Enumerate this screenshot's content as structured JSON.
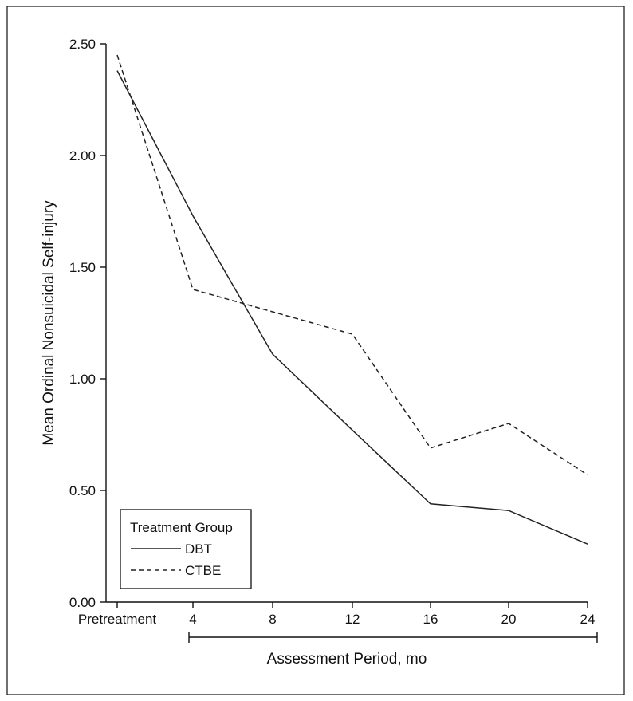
{
  "chart_data": {
    "type": "line",
    "title": "",
    "xlabel": "Assessment Period, mo",
    "ylabel": "Mean Ordinal Nonsuicidal Self-injury",
    "categories": [
      "Pretreatment",
      "4",
      "8",
      "12",
      "16",
      "20",
      "24"
    ],
    "yticks": [
      "0.00",
      "0.50",
      "1.00",
      "1.50",
      "2.00",
      "2.50"
    ],
    "ylim": [
      0,
      2.5
    ],
    "grid": false,
    "legend": {
      "title": "Treatment Group",
      "placement": "bottom-left"
    },
    "series": [
      {
        "name": "DBT",
        "style": "solid",
        "values": [
          2.38,
          1.73,
          1.11,
          0.77,
          0.44,
          0.41,
          0.26
        ]
      },
      {
        "name": "CTBE",
        "style": "dashed",
        "values": [
          2.45,
          1.4,
          1.3,
          1.2,
          0.69,
          0.8,
          0.57
        ]
      }
    ],
    "colors": {
      "line": "#222222",
      "axis": "#111111",
      "frame": "#222222"
    }
  }
}
